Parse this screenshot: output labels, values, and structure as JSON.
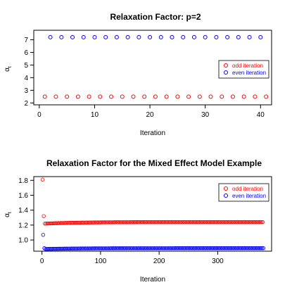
{
  "chart_data": [
    {
      "type": "scatter",
      "title": "Relaxation Factor: p=2",
      "xlabel": "Iteration",
      "ylabel": "α",
      "ylabel_subscript": "t",
      "xlim": [
        -1,
        42
      ],
      "ylim": [
        1.85,
        7.75
      ],
      "xticks": [
        0,
        10,
        20,
        30,
        40
      ],
      "yticks": [
        2,
        3,
        4,
        5,
        6,
        7
      ],
      "grid": false,
      "legend_position": "right",
      "series": [
        {
          "name": "odd iteration",
          "color": "#ff0000",
          "x": [
            1,
            3,
            5,
            7,
            9,
            11,
            13,
            15,
            17,
            19,
            21,
            23,
            25,
            27,
            29,
            31,
            33,
            35,
            37,
            39,
            41
          ],
          "y": [
            2.5,
            2.5,
            2.5,
            2.5,
            2.5,
            2.5,
            2.5,
            2.5,
            2.5,
            2.5,
            2.5,
            2.5,
            2.5,
            2.5,
            2.5,
            2.5,
            2.5,
            2.5,
            2.5,
            2.5,
            2.5
          ]
        },
        {
          "name": "even iteration",
          "color": "#0000ff",
          "x": [
            2,
            4,
            6,
            8,
            10,
            12,
            14,
            16,
            18,
            20,
            22,
            24,
            26,
            28,
            30,
            32,
            34,
            36,
            38,
            40
          ],
          "y": [
            7.2,
            7.2,
            7.2,
            7.2,
            7.2,
            7.2,
            7.2,
            7.2,
            7.2,
            7.2,
            7.2,
            7.2,
            7.2,
            7.2,
            7.2,
            7.2,
            7.2,
            7.2,
            7.2,
            7.2
          ]
        }
      ]
    },
    {
      "type": "scatter",
      "title": "Relaxation Factor for the Mixed Effect Model Example",
      "xlabel": "Iteration",
      "ylabel": "α",
      "ylabel_subscript": "t",
      "xlim": [
        -14,
        392
      ],
      "ylim": [
        0.85,
        1.85
      ],
      "xticks": [
        0,
        100,
        200,
        300
      ],
      "yticks": [
        1.0,
        1.2,
        1.4,
        1.6,
        1.8
      ],
      "ytick_labels": [
        "1.0",
        "1.2",
        "1.4",
        "1.6",
        "1.8"
      ],
      "grid": false,
      "legend_position": "top-right",
      "series": [
        {
          "name": "odd iteration",
          "color": "#ff0000",
          "x_start": 1,
          "x_end": 377,
          "x_step": 2,
          "first_points": [
            [
              1,
              1.81
            ],
            [
              3,
              1.32
            ]
          ],
          "settled_start_x": 5,
          "settled_value": 1.24,
          "initial_settled_value": 1.22
        },
        {
          "name": "even iteration",
          "color": "#0000ff",
          "x_start": 2,
          "x_end": 378,
          "x_step": 2,
          "first_points": [
            [
              2,
              1.07
            ],
            [
              4,
              0.89
            ]
          ],
          "settled_start_x": 6,
          "settled_value": 0.89,
          "initial_settled_value": 0.88
        }
      ]
    }
  ]
}
